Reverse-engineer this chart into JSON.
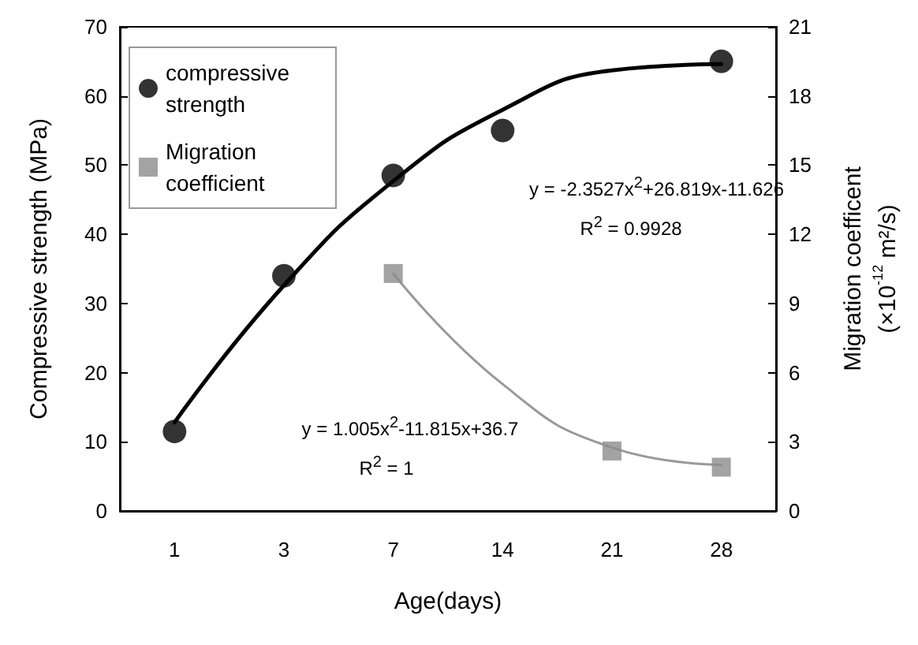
{
  "chart_data": {
    "type": "scatter",
    "xlabel": "Age(days)",
    "ylabel": "Compressive strength (MPa)",
    "y2label": "Migration coefficent\n(×10$^{-12}$ m²/s)",
    "categories": [
      "1",
      "3",
      "7",
      "14",
      "21",
      "28"
    ],
    "series": [
      {
        "name": "compressive strength",
        "marker": "circle",
        "color": "#000000",
        "values": [
          11.5,
          34,
          48.5,
          55,
          null,
          65
        ]
      },
      {
        "name": "Migration coefficient",
        "marker": "square",
        "color": "#8c8c8c",
        "axis": "y2",
        "values": [
          null,
          null,
          10.3,
          null,
          2.6,
          1.9
        ]
      },
      {
        "type": "line",
        "color": "#000000",
        "marker": "none",
        "values": [
          12.8,
          32.6,
          47.7,
          58,
          63.7,
          64.6
        ]
      },
      {
        "type": "line",
        "color": "#999999",
        "marker": "none",
        "axis": "y2",
        "values": [
          null,
          null,
          10.3,
          5.5,
          2.75,
          2.0
        ]
      }
    ],
    "ylim": [
      0,
      70
    ],
    "yticks": [
      0,
      10,
      20,
      30,
      40,
      50,
      60,
      70
    ],
    "y2lim": [
      0,
      21
    ],
    "y2ticks": [
      0,
      3,
      6,
      9,
      12,
      15,
      18,
      21
    ],
    "grid": false,
    "legend": "top left",
    "annotations": [
      "y = -2.3527x$^{2}$+26.819x-11.626",
      "R$^{2}$ = 0.9928",
      "y = 1.005x$^{2}$-11.815x+36.7",
      "R$^{2}$ = 1"
    ]
  }
}
